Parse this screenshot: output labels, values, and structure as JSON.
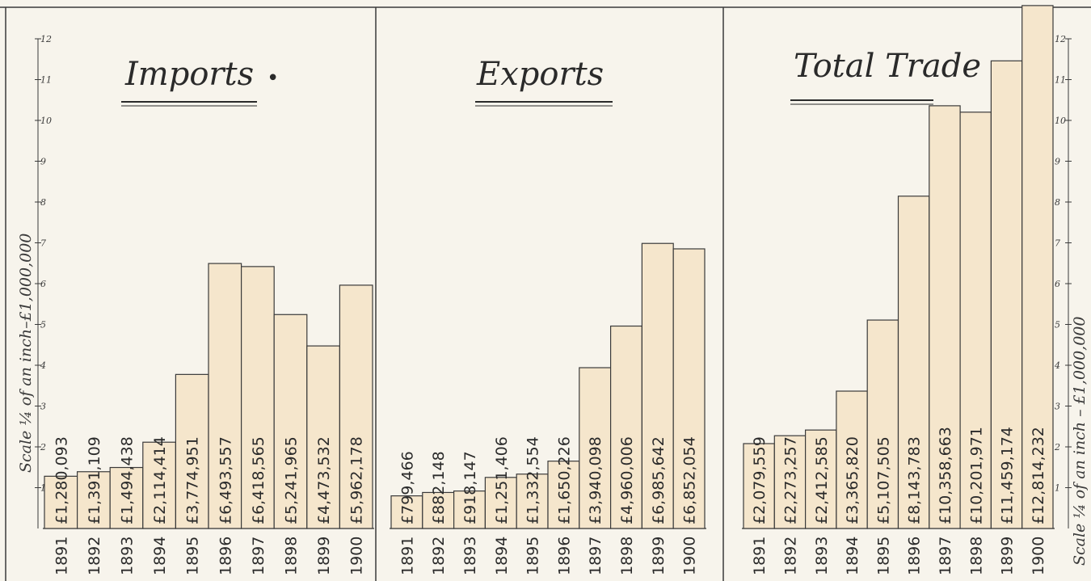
{
  "chart_data": [
    {
      "type": "bar",
      "title": "Imports",
      "title_suffix": "•",
      "categories": [
        "1891",
        "1892",
        "1893",
        "1894",
        "1895",
        "1896",
        "1897",
        "1898",
        "1899",
        "1900"
      ],
      "values": [
        1280093,
        1391109,
        1494438,
        2114414,
        3774951,
        6493557,
        6418565,
        5241965,
        4473532,
        5962178
      ],
      "data_labels": [
        "£1,280,093",
        "£1,391,109",
        "£1,494,438",
        "£2,114,414",
        "£3,774,951",
        "£6,493,557",
        "£6,418,565",
        "£5,241,965",
        "£4,473,532",
        "£5,962,178"
      ],
      "ylabel": "Scale ¼ of an inch–£1,000,000",
      "yticks": [
        "1",
        "2",
        "3",
        "4",
        "5",
        "6",
        "7",
        "8",
        "9",
        "10",
        "11",
        "12"
      ],
      "ylim": [
        0,
        12000000
      ],
      "axis_side": "left",
      "grid": false
    },
    {
      "type": "bar",
      "title": "Exports",
      "categories": [
        "1891",
        "1892",
        "1893",
        "1894",
        "1895",
        "1896",
        "1897",
        "1898",
        "1899",
        "1900"
      ],
      "values": [
        799466,
        882148,
        918147,
        1251406,
        1332554,
        1650226,
        3940098,
        4960006,
        6985642,
        6852054
      ],
      "data_labels": [
        "£799,466",
        "£882,148",
        "£918,147",
        "£1,251,406",
        "£1,332,554",
        "£1,650,226",
        "£3,940,098",
        "£4,960,006",
        "£6,985,642",
        "£6,852,054"
      ],
      "ylim": [
        0,
        12000000
      ],
      "grid": false
    },
    {
      "type": "bar",
      "title": "Total Trade",
      "categories": [
        "1891",
        "1892",
        "1893",
        "1894",
        "1895",
        "1896",
        "1897",
        "1898",
        "1899",
        "1900"
      ],
      "values": [
        2079559,
        2273257,
        2412585,
        3365820,
        5107505,
        8143783,
        10358663,
        10201971,
        11459174,
        12814232
      ],
      "data_labels": [
        "£2,079,559",
        "£2,273,257",
        "£2,412,585",
        "£3,365,820",
        "£5,107,505",
        "£8,143,783",
        "£10,358,663",
        "£10,201,971",
        "£11,459,174",
        "£12,814,232"
      ],
      "ylabel": "Scale ¼ of an inch – £1,000,000",
      "yticks": [
        "1",
        "2",
        "3",
        "4",
        "5",
        "6",
        "7",
        "8",
        "9",
        "10",
        "11",
        "12"
      ],
      "ylim": [
        0,
        12000000
      ],
      "axis_side": "right",
      "grid": false
    }
  ],
  "colors": {
    "bar_fill": "#f5e6cc",
    "bar_stroke": "#3a3a3a",
    "paper": "#f7f4ec",
    "ink": "#2a2a2a"
  }
}
